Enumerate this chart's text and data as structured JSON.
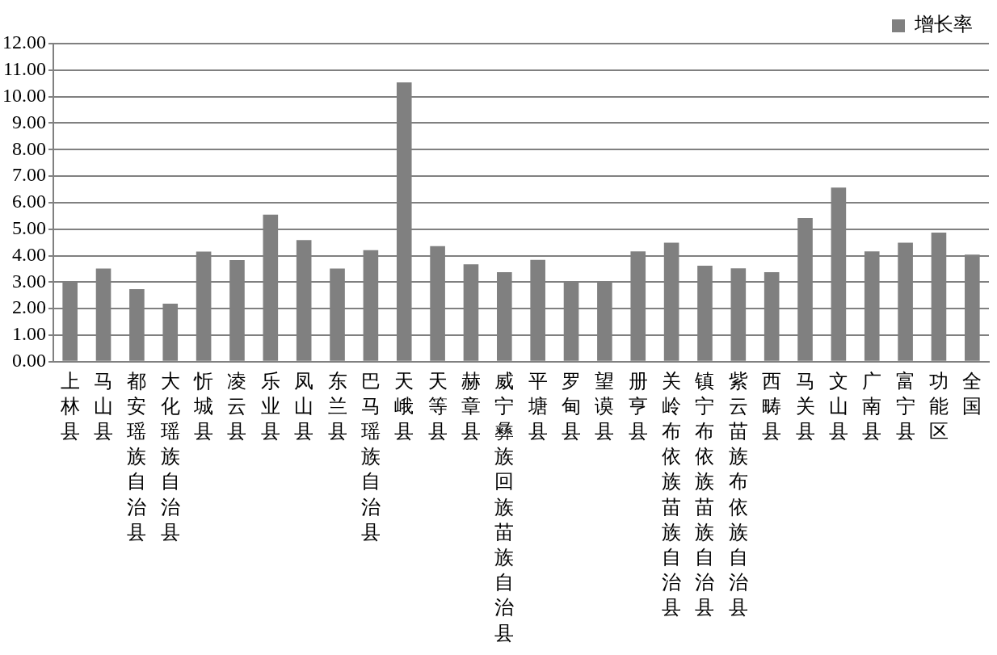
{
  "chart_data": {
    "type": "bar",
    "categories": [
      "上林县",
      "马山县",
      "都安瑶族自治县",
      "大化瑶族自治县",
      "忻城县",
      "凌云县",
      "乐业县",
      "凤山县",
      "东兰县",
      "巴马瑶族自治县",
      "天峨县",
      "天等县",
      "赫章县",
      "威宁彝族回族苗族自治县",
      "平塘县",
      "罗甸县",
      "望谟县",
      "册亨县",
      "关岭布依族苗族自治县",
      "镇宁布依族苗族自治县",
      "紫云苗族布依族自治县",
      "西畴县",
      "马关县",
      "文山县",
      "广南县",
      "富宁县",
      "功能区",
      "全国"
    ],
    "series": [
      {
        "name": "增长率",
        "color": "#808080",
        "values": [
          3.03,
          3.51,
          2.74,
          2.19,
          4.15,
          3.83,
          5.55,
          4.59,
          3.51,
          4.21,
          10.54,
          4.36,
          3.67,
          3.38,
          3.84,
          3.03,
          3.03,
          4.16,
          4.49,
          3.62,
          3.52,
          3.38,
          5.42,
          6.57,
          4.16,
          4.49,
          4.87,
          4.04
        ]
      }
    ],
    "ylim": [
      0,
      12
    ],
    "yticks": [
      {
        "value": 0,
        "label": "0.00"
      },
      {
        "value": 1,
        "label": "1.00"
      },
      {
        "value": 2,
        "label": "2.00"
      },
      {
        "value": 3,
        "label": "3.00"
      },
      {
        "value": 4,
        "label": "4.00"
      },
      {
        "value": 5,
        "label": "5.00"
      },
      {
        "value": 6,
        "label": "6.00"
      },
      {
        "value": 7,
        "label": "7.00"
      },
      {
        "value": 8,
        "label": "8.00"
      },
      {
        "value": 9,
        "label": "9.00"
      },
      {
        "value": 10,
        "label": "10.00"
      },
      {
        "value": 11,
        "label": "11.00"
      },
      {
        "value": 12,
        "label": "12.00"
      }
    ],
    "grid": "y",
    "legend": "top right"
  }
}
